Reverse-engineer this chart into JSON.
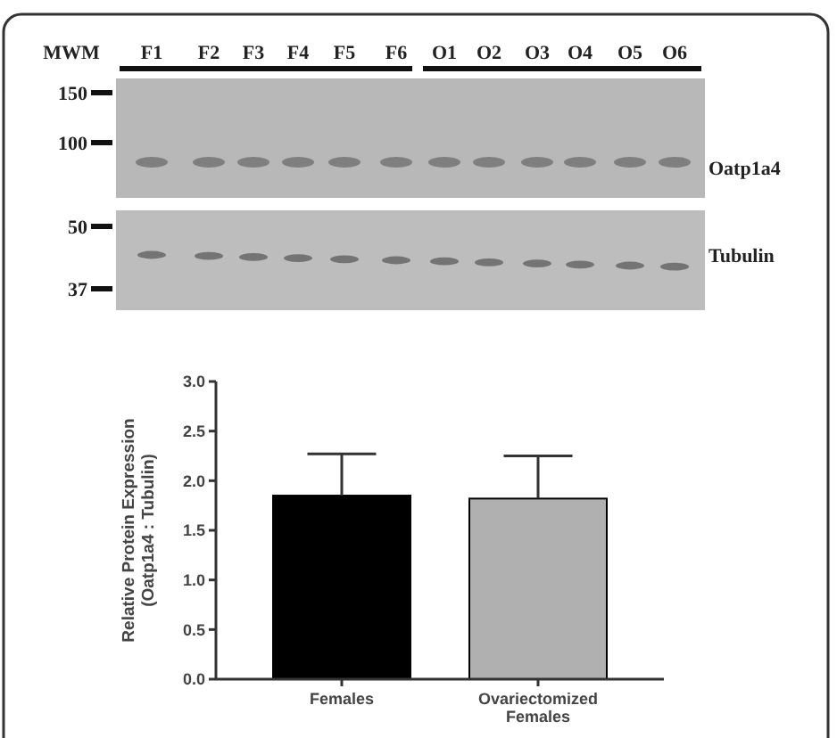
{
  "chart_data": {
    "type": "bar",
    "ylabel": "Relative Protein Expression\n(Oatp1a4 : Tubulin)",
    "categories": [
      "Females",
      "Ovariectomized\nFemales"
    ],
    "values": [
      1.85,
      1.82
    ],
    "colors": [
      "#000000",
      "#b0b0b0"
    ],
    "errors": [
      [
        1.85,
        2.27
      ],
      [
        1.82,
        2.25
      ]
    ],
    "ylim": [
      0,
      3
    ],
    "yticks": [
      {
        "value": 0,
        "label": "0.0"
      },
      {
        "value": 0.5,
        "label": "0.5"
      },
      {
        "value": 1,
        "label": "1.0"
      },
      {
        "value": 1.5,
        "label": "1.5"
      },
      {
        "value": 2,
        "label": "2.0"
      },
      {
        "value": 2.5,
        "label": "2.5"
      },
      {
        "value": 3,
        "label": "3.0"
      }
    ],
    "annotations": [
      "MWM",
      "F1",
      "F2",
      "F3",
      "F4",
      "F5",
      "F6",
      "O1",
      "O2",
      "O3",
      "O4",
      "O5",
      "O6",
      "150",
      "100",
      "50",
      "37",
      "Oatp1a4",
      "Tubulin"
    ]
  }
}
